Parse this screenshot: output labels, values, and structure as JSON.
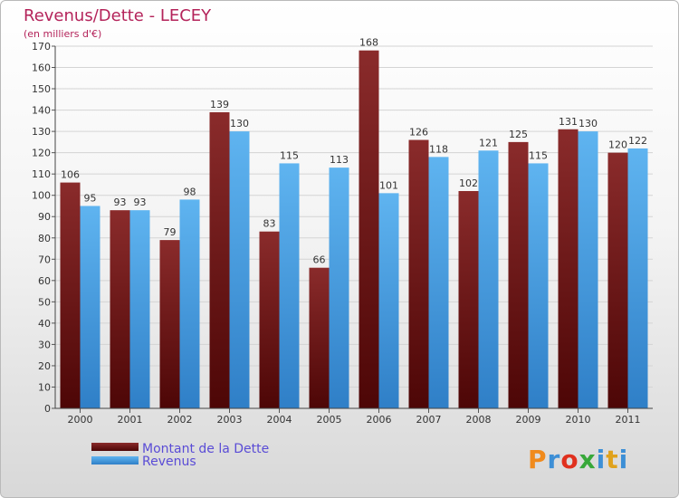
{
  "chart_data": {
    "type": "bar",
    "title": "Revenus/Dette - LECEY",
    "subtitle": "(en milliers d'€)",
    "categories": [
      "2000",
      "2001",
      "2002",
      "2003",
      "2004",
      "2005",
      "2006",
      "2007",
      "2008",
      "2009",
      "2010",
      "2011"
    ],
    "series": [
      {
        "name": "Montant de la Dette",
        "values": [
          106,
          93,
          79,
          139,
          83,
          66,
          168,
          126,
          102,
          125,
          131,
          120
        ]
      },
      {
        "name": "Revenus",
        "values": [
          95,
          93,
          98,
          130,
          115,
          113,
          101,
          118,
          121,
          115,
          130,
          122
        ]
      }
    ],
    "ylim": [
      0,
      170
    ],
    "ytick_step": 10,
    "grid": true,
    "legend_position": "bottom-left"
  },
  "colors": {
    "title": "#b4235a",
    "legend_text": "#5a4cd6",
    "dette": "#7a1e1e",
    "revenus": "#4ea6e6",
    "grid": "#cfcfcf"
  },
  "logo": {
    "text": "Proxiti"
  }
}
